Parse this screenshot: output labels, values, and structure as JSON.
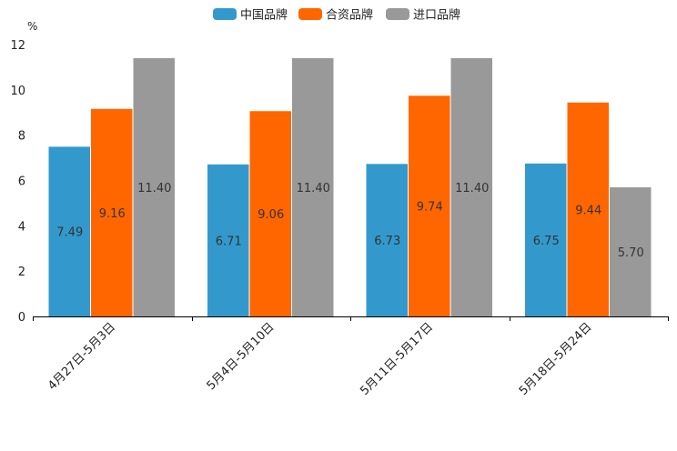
{
  "chart_data": {
    "type": "bar",
    "unit": "%",
    "ylim": [
      0,
      12
    ],
    "yticks": [
      0,
      2,
      4,
      6,
      8,
      10,
      12
    ],
    "categories": [
      "4月27日-5月3日",
      "5月4日-5月10日",
      "5月11日-5月17日",
      "5月18日-5月24日"
    ],
    "series": [
      {
        "name": "中国品牌",
        "color": "#3399cc",
        "values": [
          7.49,
          6.71,
          6.73,
          6.75
        ],
        "labels": [
          "7.49",
          "6.71",
          "6.73",
          "6.75"
        ]
      },
      {
        "name": "合资品牌",
        "color": "#ff6600",
        "values": [
          9.16,
          9.06,
          9.74,
          9.44
        ],
        "labels": [
          "9.16",
          "9.06",
          "9.74",
          "9.44"
        ]
      },
      {
        "name": "进口品牌",
        "color": "#999999",
        "values": [
          11.4,
          11.4,
          11.4,
          5.7
        ],
        "labels": [
          "11.40",
          "11.40",
          "11.40",
          "5.70"
        ]
      }
    ],
    "legend_position": "top-center",
    "grid": false
  }
}
